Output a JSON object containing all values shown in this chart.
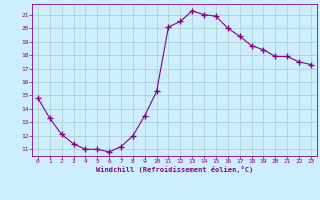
{
  "x": [
    0,
    1,
    2,
    3,
    4,
    5,
    6,
    7,
    8,
    9,
    10,
    11,
    12,
    13,
    14,
    15,
    16,
    17,
    18,
    19,
    20,
    21,
    22,
    23
  ],
  "y": [
    14.8,
    13.3,
    12.1,
    11.4,
    11.0,
    11.0,
    10.8,
    11.2,
    12.0,
    13.5,
    15.3,
    20.1,
    20.5,
    21.3,
    21.0,
    20.9,
    20.0,
    19.4,
    18.7,
    18.4,
    17.9,
    17.9,
    17.5,
    17.3
  ],
  "color": "#880088",
  "bg_color": "#cceeff",
  "grid_color": "#aacccc",
  "xlabel": "Windchill (Refroidissement éolien,°C)",
  "ylim": [
    10.5,
    21.8
  ],
  "xlim": [
    -0.5,
    23.5
  ],
  "yticks": [
    11,
    12,
    13,
    14,
    15,
    16,
    17,
    18,
    19,
    20,
    21
  ],
  "xticks": [
    0,
    1,
    2,
    3,
    4,
    5,
    6,
    7,
    8,
    9,
    10,
    11,
    12,
    13,
    14,
    15,
    16,
    17,
    18,
    19,
    20,
    21,
    22,
    23
  ],
  "marker": "+",
  "linewidth": 0.8,
  "marker_size": 4
}
